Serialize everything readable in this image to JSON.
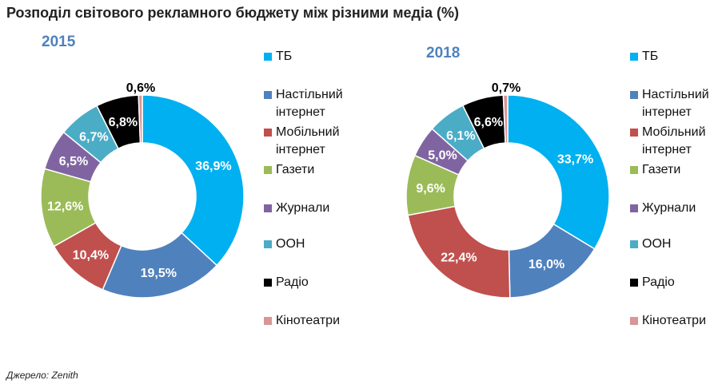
{
  "title": "Розподіл світового рекламного бюджету між різними медіа (%)",
  "source": "Джерело: Zenith",
  "chart_data": [
    {
      "type": "pie",
      "title": "2015",
      "donut": true,
      "categories": [
        "ТБ",
        "Настільний інтернет",
        "Мобільний інтернет",
        "Газети",
        "Журнали",
        "ООН",
        "Радіо",
        "Кінотеатри"
      ],
      "values": [
        36.9,
        19.5,
        10.4,
        12.6,
        6.5,
        6.7,
        6.8,
        0.6
      ],
      "labels": [
        "36,9%",
        "19,5%",
        "10,4%",
        "12,6%",
        "6,5%",
        "6,7%",
        "6,8%",
        "0,6%"
      ],
      "colors": [
        "#00B0F0",
        "#4F81BD",
        "#C0504D",
        "#9BBB59",
        "#8064A2",
        "#4BACC6",
        "#000000",
        "#D99694"
      ],
      "legend": "right"
    },
    {
      "type": "pie",
      "title": "2018",
      "donut": true,
      "categories": [
        "ТБ",
        "Настільний інтернет",
        "Мобільний інтернет",
        "Газети",
        "Журнали",
        "ООН",
        "Радіо",
        "Кінотеатри"
      ],
      "values": [
        33.7,
        16.0,
        22.4,
        9.6,
        5.0,
        6.1,
        6.6,
        0.7
      ],
      "labels": [
        "33,7%",
        "16,0%",
        "22,4%",
        "9,6%",
        "5,0%",
        "6,1%",
        "6,6%",
        "0,7%"
      ],
      "colors": [
        "#00B0F0",
        "#4F81BD",
        "#C0504D",
        "#9BBB59",
        "#8064A2",
        "#4BACC6",
        "#000000",
        "#D99694"
      ],
      "legend": "right"
    }
  ]
}
